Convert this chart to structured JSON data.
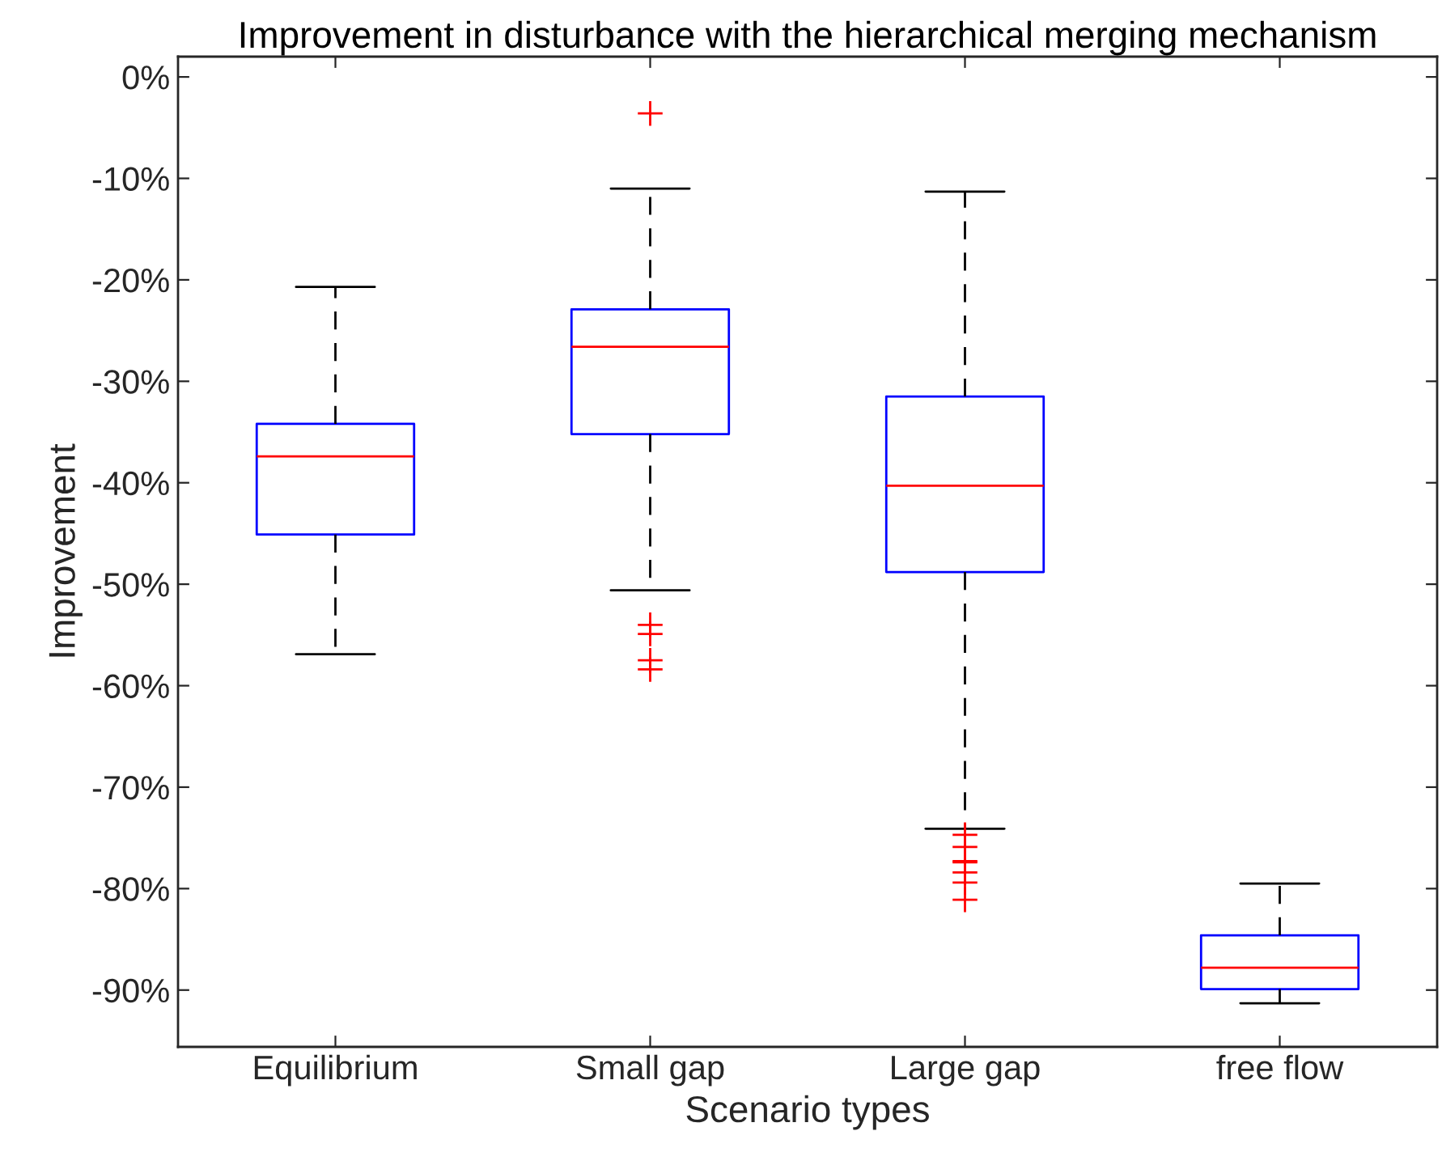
{
  "chart_data": {
    "type": "box",
    "title": "Improvement in disturbance with the hierarchical merging mechanism",
    "xlabel": "Scenario types",
    "ylabel": "Improvement",
    "categories": [
      "Equilibrium",
      "Small gap",
      "Large gap",
      "free flow"
    ],
    "boxes": [
      {
        "low": -56.9,
        "q1": -45.1,
        "median": -37.4,
        "q3": -34.2,
        "high": -20.7
      },
      {
        "low": -50.6,
        "q1": -35.2,
        "median": -26.6,
        "q3": -22.9,
        "high": -11.0,
        "outliers": [
          -3.6,
          -54.0,
          -54.9,
          -57.5,
          -58.4
        ]
      },
      {
        "low": -74.1,
        "q1": -48.8,
        "median": -40.3,
        "q3": -31.5,
        "high": -11.3,
        "outliers": [
          -74.7,
          -75.9,
          -77.3,
          -77.4,
          -78.4,
          -79.4,
          -81.1
        ]
      },
      {
        "low": -91.3,
        "q1": -89.9,
        "median": -87.8,
        "q3": -84.6,
        "high": -79.5
      }
    ],
    "color": "#0000ff",
    "ylim": [
      -95.6,
      2
    ],
    "yticks": [
      {
        "value": 0,
        "label": "0%"
      },
      {
        "value": -10,
        "label": "-10%"
      },
      {
        "value": -20,
        "label": "-20%"
      },
      {
        "value": -30,
        "label": "-30%"
      },
      {
        "value": -40,
        "label": "-40%"
      },
      {
        "value": -50,
        "label": "-50%"
      },
      {
        "value": -60,
        "label": "-60%"
      },
      {
        "value": -70,
        "label": "-70%"
      },
      {
        "value": -80,
        "label": "-80%"
      },
      {
        "value": -90,
        "label": "-90%"
      }
    ],
    "grid": false,
    "legend": false
  }
}
